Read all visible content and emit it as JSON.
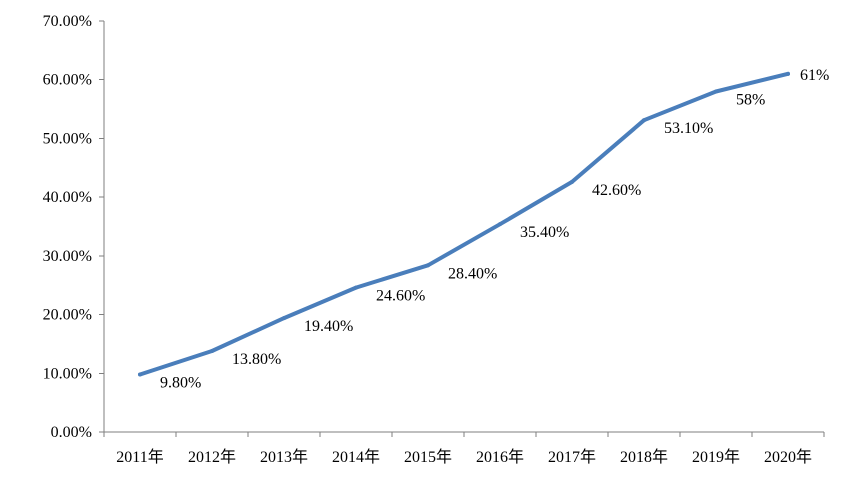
{
  "chart_data": {
    "type": "line",
    "categories": [
      "2011年",
      "2012年",
      "2013年",
      "2014年",
      "2015年",
      "2016年",
      "2017年",
      "2018年",
      "2019年",
      "2020年"
    ],
    "series": [
      {
        "values": [
          9.8,
          13.8,
          19.4,
          24.6,
          28.4,
          35.4,
          42.6,
          53.1,
          58,
          61
        ],
        "data_labels": [
          "9.80%",
          "13.80%",
          "19.40%",
          "24.60%",
          "28.40%",
          "35.40%",
          "42.60%",
          "53.10%",
          "58%",
          "61%"
        ],
        "color": "#4a7ebb"
      }
    ],
    "ylim": [
      0,
      70
    ],
    "yticks": [
      0,
      10,
      20,
      30,
      40,
      50,
      60,
      70
    ],
    "ytick_labels": [
      "0.00%",
      "10.00%",
      "20.00%",
      "30.00%",
      "40.00%",
      "50.00%",
      "60.00%",
      "70.00%"
    ],
    "grid": false,
    "legend": "none",
    "title": "",
    "xlabel": "",
    "ylabel": ""
  }
}
